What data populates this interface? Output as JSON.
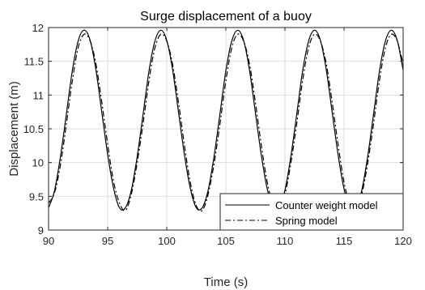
{
  "chart_data": {
    "type": "line",
    "title": "Surge displacement of a buoy",
    "xlabel": "Time (s)",
    "ylabel": "Displacement (m)",
    "xlim": [
      90,
      120
    ],
    "ylim": [
      9,
      12
    ],
    "xticks": [
      90,
      95,
      100,
      105,
      110,
      115,
      120
    ],
    "yticks": [
      9,
      9.5,
      10,
      10.5,
      11,
      11.5,
      12
    ],
    "xtick_labels": [
      "90",
      "95",
      "100",
      "105",
      "110",
      "115",
      "120"
    ],
    "ytick_labels": [
      "9",
      "9.5",
      "10",
      "10.5",
      "11",
      "11.5",
      "12"
    ],
    "grid": true,
    "legend_position": "bottom-right",
    "series": [
      {
        "name": "Counter weight model",
        "style": "solid",
        "color": "#000000",
        "x": [
          90.0,
          90.5,
          91.0,
          91.5,
          92.0,
          92.5,
          93.0,
          93.5,
          94.0,
          94.5,
          95.0,
          95.5,
          96.0,
          96.5,
          97.0,
          97.5,
          98.0,
          98.5,
          99.0,
          99.5,
          100.0,
          100.5,
          101.0,
          101.5,
          102.0,
          102.5,
          103.0,
          103.5,
          104.0,
          104.5,
          105.0,
          105.5,
          106.0,
          106.5,
          107.0,
          107.5,
          108.0,
          108.5,
          109.0,
          109.5,
          110.0,
          110.5,
          111.0,
          111.5,
          112.0,
          112.5,
          113.0,
          113.5,
          114.0,
          114.5,
          115.0,
          115.5,
          116.0,
          116.5,
          117.0,
          117.5,
          118.0,
          118.5,
          119.0,
          119.5,
          120.0
        ],
        "y": [
          9.33,
          9.58,
          10.08,
          10.71,
          11.35,
          11.8,
          11.96,
          11.82,
          11.38,
          10.75,
          10.12,
          9.62,
          9.33,
          9.33,
          9.59,
          10.09,
          10.72,
          11.36,
          11.8,
          11.96,
          11.81,
          11.37,
          10.74,
          10.11,
          9.61,
          9.33,
          9.33,
          9.59,
          10.09,
          10.72,
          11.36,
          11.8,
          11.96,
          11.81,
          11.37,
          10.74,
          10.11,
          9.61,
          9.33,
          9.33,
          9.59,
          10.09,
          10.72,
          11.36,
          11.8,
          11.96,
          11.81,
          11.37,
          10.74,
          10.11,
          9.61,
          9.33,
          9.33,
          9.59,
          10.09,
          10.72,
          11.36,
          11.8,
          11.96,
          11.81,
          11.37
        ]
      },
      {
        "name": "Spring model",
        "style": "dashdot",
        "color": "#000000",
        "x": [
          90.0,
          90.5,
          91.0,
          91.5,
          92.0,
          92.5,
          93.0,
          93.5,
          94.0,
          94.5,
          95.0,
          95.5,
          96.0,
          96.5,
          97.0,
          97.5,
          98.0,
          98.5,
          99.0,
          99.5,
          100.0,
          100.5,
          101.0,
          101.5,
          102.0,
          102.5,
          103.0,
          103.5,
          104.0,
          104.5,
          105.0,
          105.5,
          106.0,
          106.5,
          107.0,
          107.5,
          108.0,
          108.5,
          109.0,
          109.5,
          110.0,
          110.5,
          111.0,
          111.5,
          112.0,
          112.5,
          113.0,
          113.5,
          114.0,
          114.5,
          115.0,
          115.5,
          116.0,
          116.5,
          117.0,
          117.5,
          118.0,
          118.5,
          119.0,
          119.5,
          120.0
        ],
        "y": [
          9.4,
          9.55,
          9.96,
          10.56,
          11.2,
          11.7,
          11.9,
          11.81,
          11.47,
          10.9,
          10.27,
          9.72,
          9.4,
          9.29,
          9.53,
          10.0,
          10.58,
          11.22,
          11.7,
          11.9,
          11.8,
          11.45,
          10.88,
          10.25,
          9.7,
          9.36,
          9.29,
          9.53,
          9.98,
          10.57,
          11.21,
          11.7,
          11.9,
          11.8,
          11.46,
          10.89,
          10.26,
          9.71,
          9.38,
          9.29,
          9.53,
          9.99,
          10.58,
          11.22,
          11.7,
          11.9,
          11.8,
          11.46,
          10.89,
          10.26,
          9.71,
          9.38,
          9.29,
          9.53,
          9.99,
          10.58,
          11.22,
          11.7,
          11.9,
          11.8,
          11.46
        ]
      }
    ]
  }
}
